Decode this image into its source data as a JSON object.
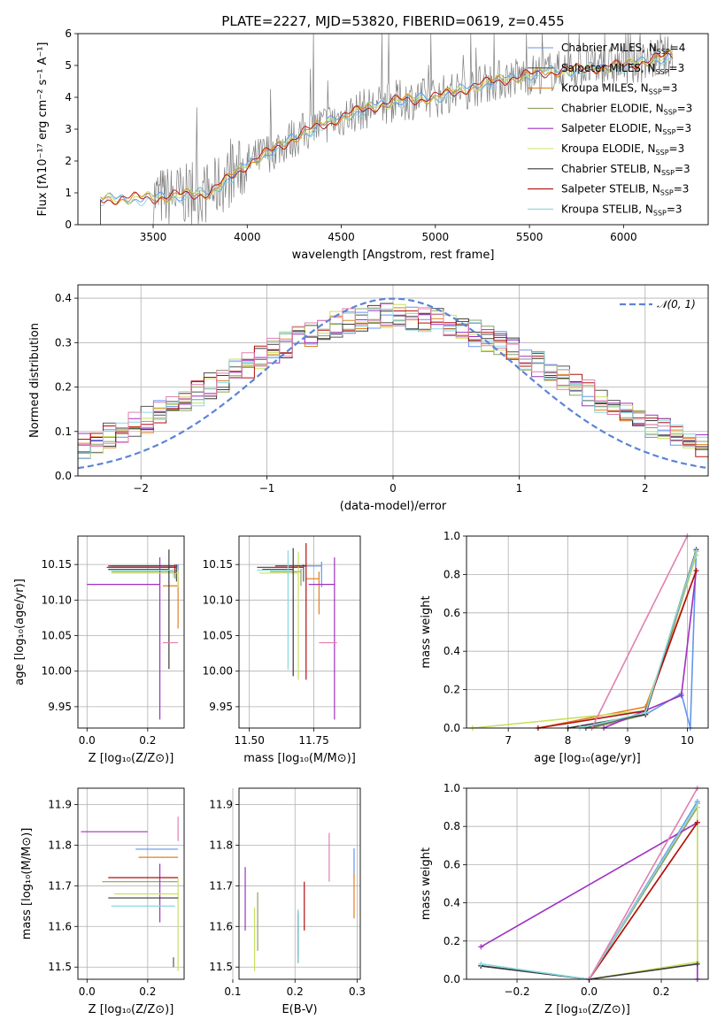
{
  "figure_title": "PLATE=2227, MJD=53820, FIBERID=0619, z=0.455",
  "colors": [
    "#6495ed",
    "#555555",
    "#e0801e",
    "#8fa15e",
    "#a030c0",
    "#c8e060",
    "#3a3a3a",
    "#b01010",
    "#88d8e0"
  ],
  "light_pink": "#e080b0",
  "chart_data": [
    {
      "type": "line",
      "name": "spectrum",
      "title": "PLATE=2227, MJD=53820, FIBERID=0619, z=0.455",
      "xlabel": "wavelength [Angstrom, rest frame]",
      "ylabel": "Flux [fλ10⁻¹⁷ erg cm⁻² s⁻¹ A⁻¹]",
      "xlim": [
        3100,
        6450
      ],
      "ylim": [
        0,
        6
      ],
      "xticks": [
        3500,
        4000,
        4500,
        5000,
        5500,
        6000
      ],
      "yticks": [
        0,
        1,
        2,
        3,
        4,
        5,
        6
      ],
      "legend_position": "upper right",
      "legend": [
        {
          "label": "Chabrier MILES, N",
          "sub": "SSP",
          "suffix": "=4",
          "color": "#6495ed"
        },
        {
          "label": "Salpeter MILES, N",
          "sub": "SSP",
          "suffix": "=3",
          "color": "#555555"
        },
        {
          "label": "Kroupa MILES, N",
          "sub": "SSP",
          "suffix": "=3",
          "color": "#e0801e"
        },
        {
          "label": "Chabrier ELODIE, N",
          "sub": "SSP",
          "suffix": "=3",
          "color": "#8fa15e"
        },
        {
          "label": "Salpeter ELODIE, N",
          "sub": "SSP",
          "suffix": "=3",
          "color": "#a030c0"
        },
        {
          "label": "Kroupa ELODIE, N",
          "sub": "SSP",
          "suffix": "=3",
          "color": "#c8e060"
        },
        {
          "label": "Chabrier STELIB, N",
          "sub": "SSP",
          "suffix": "=3",
          "color": "#3a3a3a"
        },
        {
          "label": "Salpeter STELIB, N",
          "sub": "SSP",
          "suffix": "=3",
          "color": "#b01010"
        },
        {
          "label": "Kroupa STELIB, N",
          "sub": "SSP",
          "suffix": "=3",
          "color": "#88d8e0"
        }
      ],
      "continuum": {
        "x": [
          3220,
          3500,
          3800,
          4000,
          4300,
          4600,
          4800,
          5000,
          5300,
          5600,
          5800,
          6000,
          6250
        ],
        "y": [
          0.8,
          0.85,
          1.0,
          1.9,
          2.9,
          3.6,
          3.9,
          4.0,
          4.5,
          4.8,
          4.9,
          5.0,
          5.3
        ]
      }
    },
    {
      "type": "histogram",
      "name": "residuals",
      "xlabel": "(data-model)/error",
      "ylabel": "Normed distribution",
      "xlim": [
        -2.5,
        2.5
      ],
      "ylim": [
        0,
        0.43
      ],
      "xticks": [
        -2,
        -1,
        0,
        1,
        2
      ],
      "yticks": [
        0.0,
        0.1,
        0.2,
        0.3,
        0.4
      ],
      "reference_label": "𝒩(0, 1)",
      "reference_color": "#5b84d6"
    },
    {
      "type": "scatter",
      "name": "age_vs_Z",
      "xlabel": "Z [log₁₀(Z/Z⊙)]",
      "ylabel": "age  [log₁₀(age/yr)]",
      "xlim": [
        -0.03,
        0.32
      ],
      "ylim": [
        9.92,
        10.19
      ],
      "xticks": [
        0.0,
        0.2
      ],
      "yticks": [
        9.95,
        10.0,
        10.05,
        10.1,
        10.15
      ],
      "points": [
        {
          "x": 0.3,
          "y": 10.148,
          "xerr": 0.22,
          "yerr": 0.01,
          "c": "#6495ed"
        },
        {
          "x": 0.295,
          "y": 10.146,
          "xerr": 0.23,
          "yerr": 0.02,
          "c": "#555555"
        },
        {
          "x": 0.3,
          "y": 10.12,
          "xerr": 0.05,
          "yerr": 0.06,
          "c": "#e0801e"
        },
        {
          "x": 0.29,
          "y": 10.14,
          "xerr": 0.21,
          "yerr": 0.01,
          "c": "#8fa15e"
        },
        {
          "x": 0.24,
          "y": 10.122,
          "xerr": 0.24,
          "yerr": 0.19,
          "c": "#a030c0"
        },
        {
          "x": 0.3,
          "y": 10.138,
          "xerr": 0.22,
          "yerr": 0.02,
          "c": "#c8e060"
        },
        {
          "x": 0.27,
          "y": 10.143,
          "xerr": 0.2,
          "yerr": 0.14,
          "c": "#3a3a3a"
        },
        {
          "x": 0.29,
          "y": 10.148,
          "xerr": 0.22,
          "yerr": 0.01,
          "c": "#b01010"
        },
        {
          "x": 0.285,
          "y": 10.142,
          "xerr": 0.21,
          "yerr": 0.01,
          "c": "#88d8e0"
        },
        {
          "x": 0.3,
          "y": 10.04,
          "xerr": 0.05,
          "yerr": 0.0,
          "c": "#e080b0"
        }
      ]
    },
    {
      "type": "scatter",
      "name": "age_vs_mass",
      "xlabel": "mass [log₁₀(M/M⊙)]",
      "ylabel": "",
      "xlim": [
        11.46,
        11.93
      ],
      "ylim": [
        9.92,
        10.19
      ],
      "xticks": [
        11.5,
        11.75
      ],
      "yticks": [
        9.95,
        10.0,
        10.05,
        10.1,
        10.15
      ],
      "points": [
        {
          "x": 11.78,
          "y": 10.148,
          "xerr": 0.1,
          "yerr": 0.03,
          "c": "#6495ed"
        },
        {
          "x": 11.71,
          "y": 10.146,
          "xerr": 0.18,
          "yerr": 0.02,
          "c": "#555555"
        },
        {
          "x": 11.77,
          "y": 10.13,
          "xerr": 0.05,
          "yerr": 0.05,
          "c": "#e0801e"
        },
        {
          "x": 11.7,
          "y": 10.14,
          "xerr": 0.12,
          "yerr": 0.02,
          "c": "#8fa15e"
        },
        {
          "x": 11.83,
          "y": 10.122,
          "xerr": 0.1,
          "yerr": 0.19,
          "c": "#a030c0"
        },
        {
          "x": 11.69,
          "y": 10.138,
          "xerr": 0.15,
          "yerr": 0.15,
          "c": "#c8e060"
        },
        {
          "x": 11.67,
          "y": 10.143,
          "xerr": 0.12,
          "yerr": 0.15,
          "c": "#3a3a3a"
        },
        {
          "x": 11.72,
          "y": 10.148,
          "xerr": 0.12,
          "yerr": 0.16,
          "c": "#b01010"
        },
        {
          "x": 11.65,
          "y": 10.142,
          "xerr": 0.12,
          "yerr": 0.14,
          "c": "#88d8e0"
        },
        {
          "x": 11.84,
          "y": 10.04,
          "xerr": 0.07,
          "yerr": 0.0,
          "c": "#e080b0"
        }
      ]
    },
    {
      "type": "line",
      "name": "mass_weight_vs_age",
      "xlabel": "age  [log₁₀(age/yr)]",
      "ylabel": "mass weight",
      "xlim": [
        6.3,
        10.35
      ],
      "ylim": [
        0,
        1
      ],
      "xticks": [
        7,
        8,
        9,
        10
      ],
      "yticks": [
        0.0,
        0.2,
        0.4,
        0.6,
        0.8,
        1.0
      ],
      "series": [
        {
          "c": "#6495ed",
          "x": [
            9.3,
            9.9,
            10.05,
            10.15
          ],
          "y": [
            0.07,
            0.18,
            0.0,
            0.93
          ]
        },
        {
          "c": "#555555",
          "x": [
            8.3,
            9.3,
            10.15
          ],
          "y": [
            0.0,
            0.07,
            0.93
          ]
        },
        {
          "c": "#e0801e",
          "x": [
            7.5,
            9.3,
            10.15
          ],
          "y": [
            0.0,
            0.11,
            0.82
          ]
        },
        {
          "c": "#8fa15e",
          "x": [
            8.4,
            9.3,
            10.15
          ],
          "y": [
            0.0,
            0.07,
            0.9
          ]
        },
        {
          "c": "#a030c0",
          "x": [
            8.6,
            9.9,
            10.15
          ],
          "y": [
            0.0,
            0.17,
            0.82
          ]
        },
        {
          "c": "#c8e060",
          "x": [
            6.4,
            9.3,
            10.15
          ],
          "y": [
            0.0,
            0.09,
            0.9
          ]
        },
        {
          "c": "#3a3a3a",
          "x": [
            8.0,
            9.3,
            10.15
          ],
          "y": [
            0.0,
            0.07,
            0.92
          ]
        },
        {
          "c": "#b01010",
          "x": [
            7.5,
            9.3,
            10.15
          ],
          "y": [
            0.0,
            0.09,
            0.82
          ]
        },
        {
          "c": "#88d8e0",
          "x": [
            8.2,
            9.3,
            10.15
          ],
          "y": [
            0.0,
            0.08,
            0.92
          ]
        },
        {
          "c": "#e080b0",
          "x": [
            8.4,
            10.0
          ],
          "y": [
            0.0,
            1.0
          ]
        }
      ]
    },
    {
      "type": "scatter",
      "name": "mass_vs_Z",
      "xlabel": "Z [log₁₀(Z/Z⊙)]",
      "ylabel": "mass [log₁₀(M/M⊙)]",
      "xlim": [
        -0.03,
        0.32
      ],
      "ylim": [
        11.47,
        11.94
      ],
      "xticks": [
        0.0,
        0.2
      ],
      "yticks": [
        11.5,
        11.6,
        11.7,
        11.8,
        11.9
      ],
      "points": [
        {
          "x": 0.3,
          "y": 11.79,
          "xerr": 0.14,
          "yerr": 0.0,
          "c": "#6495ed"
        },
        {
          "x": 0.285,
          "y": 11.52,
          "xerr": 0.0,
          "yerr": 0.02,
          "c": "#555555"
        },
        {
          "x": 0.3,
          "y": 11.77,
          "xerr": 0.13,
          "yerr": 0.0,
          "c": "#e0801e"
        },
        {
          "x": 0.3,
          "y": 11.71,
          "xerr": 0.25,
          "yerr": 0.0,
          "c": "#8fa15e"
        },
        {
          "x": 0.24,
          "y": 11.73,
          "xerr": 0.0,
          "yerr": 0.12,
          "c": "#a030c0"
        },
        {
          "x": 0.3,
          "y": 11.68,
          "xerr": 0.21,
          "yerr": 0.19,
          "c": "#c8e060"
        },
        {
          "x": 0.3,
          "y": 11.67,
          "xerr": 0.23,
          "yerr": 0.0,
          "c": "#3a3a3a"
        },
        {
          "x": 0.3,
          "y": 11.72,
          "xerr": 0.23,
          "yerr": 0.0,
          "c": "#b01010"
        },
        {
          "x": 0.29,
          "y": 11.65,
          "xerr": 0.21,
          "yerr": 0.0,
          "c": "#88d8e0"
        },
        {
          "x": 0.3,
          "y": 11.86,
          "xerr": 0.0,
          "yerr": 0.05,
          "c": "#e080b0"
        },
        {
          "x": 0.2,
          "y": 11.833,
          "xerr": 0.22,
          "yerr": 0.0,
          "c": "#a030c0"
        }
      ]
    },
    {
      "type": "scatter",
      "name": "mass_vs_ebv",
      "xlabel": "E(B-V)",
      "ylabel": "",
      "xlim": [
        0.11,
        0.305
      ],
      "ylim": [
        11.47,
        11.94
      ],
      "xticks": [
        0.1,
        0.2,
        0.3
      ],
      "yticks": [
        11.5,
        11.6,
        11.7,
        11.8,
        11.9
      ],
      "points": [
        {
          "x": 0.295,
          "y": 11.78,
          "yerr": 0.06,
          "c": "#6495ed"
        },
        {
          "x": 0.205,
          "y": 11.62,
          "yerr": 0.09,
          "c": "#555555"
        },
        {
          "x": 0.295,
          "y": 11.71,
          "yerr": 0.09,
          "c": "#e0801e"
        },
        {
          "x": 0.14,
          "y": 11.66,
          "yerr": 0.12,
          "c": "#8fa15e"
        },
        {
          "x": 0.12,
          "y": 11.72,
          "yerr": 0.13,
          "c": "#a030c0"
        },
        {
          "x": 0.135,
          "y": 11.62,
          "yerr": 0.13,
          "c": "#c8e060"
        },
        {
          "x": 0.205,
          "y": 11.61,
          "yerr": 0.1,
          "c": "#3a3a3a"
        },
        {
          "x": 0.215,
          "y": 11.69,
          "yerr": 0.1,
          "c": "#b01010"
        },
        {
          "x": 0.205,
          "y": 11.62,
          "yerr": 0.11,
          "c": "#88d8e0"
        },
        {
          "x": 0.255,
          "y": 11.81,
          "yerr": 0.1,
          "c": "#e080b0"
        }
      ]
    },
    {
      "type": "line",
      "name": "mass_weight_vs_Z",
      "xlabel": "Z [log₁₀(Z/Z⊙)]",
      "ylabel": "mass weight",
      "xlim": [
        -0.34,
        0.33
      ],
      "ylim": [
        0,
        1
      ],
      "xticks": [
        -0.2,
        0.0,
        0.2
      ],
      "yticks": [
        0.0,
        0.2,
        0.4,
        0.6,
        0.8,
        1.0
      ],
      "series": [
        {
          "c": "#6495ed",
          "x": [
            0.0,
            0.3
          ],
          "y": [
            0.0,
            0.93
          ]
        },
        {
          "c": "#555555",
          "x": [
            -0.3,
            0.0,
            0.3
          ],
          "y": [
            0.07,
            0.0,
            0.92
          ]
        },
        {
          "c": "#e0801e",
          "x": [
            0.0,
            0.3
          ],
          "y": [
            0.0,
            0.82
          ]
        },
        {
          "c": "#8fa15e",
          "x": [
            0.0,
            0.3
          ],
          "y": [
            0.0,
            0.9
          ]
        },
        {
          "c": "#a030c0",
          "x": [
            -0.3,
            0.3,
            0.3
          ],
          "y": [
            0.17,
            0.82,
            0.0
          ]
        },
        {
          "c": "#c8e060",
          "x": [
            0.0,
            0.3,
            0.3
          ],
          "y": [
            0.0,
            0.09,
            0.9
          ]
        },
        {
          "c": "#3a3a3a",
          "x": [
            -0.3,
            0.0,
            0.3
          ],
          "y": [
            0.07,
            0.0,
            0.08
          ]
        },
        {
          "c": "#b01010",
          "x": [
            0.0,
            0.3
          ],
          "y": [
            0.0,
            0.82
          ]
        },
        {
          "c": "#88d8e0",
          "x": [
            -0.3,
            0.0,
            0.3
          ],
          "y": [
            0.08,
            0.0,
            0.92
          ]
        },
        {
          "c": "#e080b0",
          "x": [
            0.0,
            0.3
          ],
          "y": [
            0.0,
            1.0
          ]
        }
      ]
    }
  ]
}
